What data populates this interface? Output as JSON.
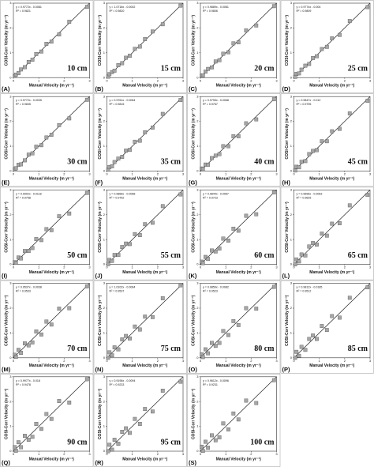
{
  "chart_data": [
    {
      "type": "scatter",
      "panel": "(A)",
      "label": "10 cm",
      "equation": "y = 0.9772x - 0.0081",
      "r2": "R² = 0.9821",
      "xlabel": "Manual Velocity (m yr⁻¹)",
      "ylabel": "COSI-Corr Velocity (m yr⁻¹)",
      "color": "#a6a6a6",
      "xlim": [
        0,
        3
      ],
      "ylim": [
        0,
        3
      ],
      "xticks": [
        0,
        1,
        2,
        3
      ],
      "yticks": [
        0,
        1,
        2,
        3
      ],
      "x": [
        0.05,
        0.1,
        0.2,
        0.3,
        0.45,
        0.6,
        0.75,
        0.9,
        1.1,
        1.3,
        1.5,
        1.8,
        2.2,
        2.9
      ],
      "y": [
        0.06,
        0.12,
        0.18,
        0.33,
        0.42,
        0.63,
        0.72,
        0.95,
        1.05,
        1.36,
        1.45,
        1.74,
        2.25,
        2.85
      ]
    },
    {
      "type": "scatter",
      "panel": "(B)",
      "label": "15 cm",
      "equation": "y = 1.0718x - 0.0002",
      "r2": "R² = 0.9820",
      "xlabel": "Manual Velocity (m yr⁻¹)",
      "ylabel": "COSI-Corr Velocity (m yr⁻¹)",
      "color": "#a6a6a6",
      "xlim": [
        0,
        3
      ],
      "ylim": [
        0,
        3
      ],
      "xticks": [
        0,
        1,
        2,
        3
      ],
      "yticks": [
        0,
        1,
        2,
        3
      ],
      "x": [
        0.05,
        0.1,
        0.2,
        0.3,
        0.45,
        0.6,
        0.75,
        0.9,
        1.1,
        1.3,
        1.5,
        1.8,
        2.2,
        2.9
      ],
      "y": [
        0.04,
        0.14,
        0.22,
        0.28,
        0.5,
        0.58,
        0.8,
        0.88,
        1.16,
        1.25,
        1.55,
        1.86,
        2.15,
        2.9
      ]
    },
    {
      "type": "scatter",
      "panel": "(C)",
      "label": "20 cm",
      "equation": "y = 0.9889x - 0.0081",
      "r2": "R² = 0.9806",
      "xlabel": "Manual Velocity (m yr⁻¹)",
      "ylabel": "COSI-Corr Velocity (m yr⁻¹)",
      "color": "#a6a6a6",
      "xlim": [
        0,
        3
      ],
      "ylim": [
        0,
        3
      ],
      "xticks": [
        0,
        1,
        2,
        3
      ],
      "yticks": [
        0,
        1,
        2,
        3
      ],
      "x": [
        0.05,
        0.1,
        0.2,
        0.3,
        0.45,
        0.6,
        0.75,
        0.9,
        1.1,
        1.3,
        1.5,
        1.8,
        2.2,
        2.9
      ],
      "y": [
        0.08,
        0.09,
        0.24,
        0.35,
        0.41,
        0.65,
        0.7,
        0.96,
        1.02,
        1.38,
        1.42,
        1.9,
        2.1,
        2.88
      ]
    },
    {
      "type": "scatter",
      "panel": "(D)",
      "label": "25 cm",
      "equation": "y = 0.9774x - 0.004",
      "r2": "R² = 0.9809",
      "xlabel": "Manual Velocity (m yr⁻¹)",
      "ylabel": "COSI-Corr Velocity (m yr⁻¹)",
      "color": "#a6a6a6",
      "xlim": [
        0,
        3
      ],
      "ylim": [
        0,
        3
      ],
      "xticks": [
        0,
        1,
        2,
        3
      ],
      "yticks": [
        0,
        1,
        2,
        3
      ],
      "x": [
        0.05,
        0.1,
        0.2,
        0.3,
        0.45,
        0.6,
        0.75,
        0.9,
        1.1,
        1.3,
        1.5,
        1.8,
        2.2,
        2.9
      ],
      "y": [
        0.03,
        0.15,
        0.17,
        0.32,
        0.48,
        0.55,
        0.79,
        0.86,
        1.15,
        1.24,
        1.58,
        1.72,
        2.28,
        2.84
      ]
    },
    {
      "type": "scatter",
      "panel": "(E)",
      "label": "30 cm",
      "equation": "y = 0.9772x - 0.0035",
      "r2": "R² = 0.9835",
      "xlabel": "Manual Velocity (m yr⁻¹)",
      "ylabel": "COSI-Corr Velocity (m yr⁻¹)",
      "color": "#a6a6a6",
      "xlim": [
        0,
        3
      ],
      "ylim": [
        0,
        3
      ],
      "xticks": [
        0,
        1,
        2,
        3
      ],
      "yticks": [
        0,
        1,
        2,
        3
      ],
      "x": [
        0.05,
        0.1,
        0.2,
        0.3,
        0.45,
        0.6,
        0.75,
        0.9,
        1.1,
        1.3,
        1.5,
        1.8,
        2.2,
        2.9
      ],
      "y": [
        0.07,
        0.11,
        0.25,
        0.27,
        0.43,
        0.66,
        0.71,
        0.98,
        1.04,
        1.35,
        1.46,
        1.85,
        2.12,
        2.87
      ]
    },
    {
      "type": "scatter",
      "panel": "(F)",
      "label": "35 cm",
      "equation": "y = 0.9761x - 0.0064",
      "r2": "R² = 0.9815",
      "xlabel": "Manual Velocity (m yr⁻¹)",
      "ylabel": "COSI-Corr Velocity (m yr⁻¹)",
      "color": "#a6a6a6",
      "xlim": [
        0,
        3
      ],
      "ylim": [
        0,
        3
      ],
      "xticks": [
        0,
        1,
        2,
        3
      ],
      "yticks": [
        0,
        1,
        2,
        3
      ],
      "x": [
        0.05,
        0.1,
        0.2,
        0.3,
        0.45,
        0.6,
        0.75,
        0.9,
        1.1,
        1.3,
        1.5,
        1.8,
        2.2,
        2.9
      ],
      "y": [
        0.05,
        0.16,
        0.19,
        0.36,
        0.5,
        0.57,
        0.82,
        0.85,
        1.18,
        1.22,
        1.56,
        1.75,
        2.3,
        2.86
      ]
    },
    {
      "type": "scatter",
      "panel": "(G)",
      "label": "40 cm",
      "equation": "y = 0.9795x - 0.0068",
      "r2": "R² = 0.9767",
      "xlabel": "Manual Velocity (m yr⁻¹)",
      "ylabel": "COSI-Corr Velocity (m yr⁻¹)",
      "color": "#a6a6a6",
      "xlim": [
        0,
        3
      ],
      "ylim": [
        0,
        3
      ],
      "xticks": [
        0,
        1,
        2,
        3
      ],
      "yticks": [
        0,
        1,
        2,
        3
      ],
      "x": [
        0.05,
        0.1,
        0.2,
        0.3,
        0.45,
        0.6,
        0.75,
        0.9,
        1.1,
        1.3,
        1.5,
        1.8,
        2.2,
        2.9
      ],
      "y": [
        0.1,
        0.08,
        0.26,
        0.25,
        0.52,
        0.62,
        0.68,
        1.0,
        1.0,
        1.4,
        1.4,
        1.92,
        2.08,
        2.89
      ]
    },
    {
      "type": "scatter",
      "panel": "(H)",
      "label": "45 cm",
      "equation": "y = 0.9847x - 0.012",
      "r2": "R² = 0.9795",
      "xlabel": "Manual Velocity (m yr⁻¹)",
      "ylabel": "COSI-Corr Velocity (m yr⁻¹)",
      "color": "#a6a6a6",
      "xlim": [
        0,
        3
      ],
      "ylim": [
        0,
        3
      ],
      "xticks": [
        0,
        1,
        2,
        3
      ],
      "yticks": [
        0,
        1,
        2,
        3
      ],
      "x": [
        0.05,
        0.1,
        0.2,
        0.3,
        0.45,
        0.6,
        0.75,
        0.9,
        1.1,
        1.3,
        1.5,
        1.8,
        2.2,
        2.9
      ],
      "y": [
        0.02,
        0.17,
        0.15,
        0.37,
        0.4,
        0.68,
        0.81,
        0.84,
        1.2,
        1.2,
        1.6,
        1.7,
        2.32,
        2.83
      ]
    },
    {
      "type": "scatter",
      "panel": "(I)",
      "label": "50 cm",
      "equation": "y = 0.9902x - 0.0118",
      "r2": "R² = 0.9758",
      "xlabel": "Manual Velocity (m yr⁻¹)",
      "ylabel": "COSI-Corr Velocity (m yr⁻¹)",
      "color": "#a6a6a6",
      "xlim": [
        0,
        3
      ],
      "ylim": [
        0,
        3
      ],
      "xticks": [
        0,
        1,
        2,
        3
      ],
      "yticks": [
        0,
        1,
        2,
        3
      ],
      "x": [
        0.05,
        0.1,
        0.2,
        0.3,
        0.45,
        0.6,
        0.75,
        0.9,
        1.1,
        1.3,
        1.5,
        1.8,
        2.2,
        2.9
      ],
      "y": [
        0.09,
        0.06,
        0.28,
        0.24,
        0.54,
        0.54,
        0.66,
        1.02,
        0.98,
        1.42,
        1.38,
        1.94,
        2.05,
        2.88
      ]
    },
    {
      "type": "scatter",
      "panel": "(J)",
      "label": "55 cm",
      "equation": "y = 0.9866x - 0.0068",
      "r2": "R² = 0.9752",
      "xlabel": "Manual Velocity (m yr⁻¹)",
      "ylabel": "COSI-Corr Velocity (m yr⁻¹)",
      "color": "#a6a6a6",
      "xlim": [
        0,
        3
      ],
      "ylim": [
        0,
        3
      ],
      "xticks": [
        0,
        1,
        2,
        3
      ],
      "yticks": [
        0,
        1,
        2,
        3
      ],
      "x": [
        0.05,
        0.1,
        0.2,
        0.3,
        0.45,
        0.6,
        0.75,
        0.9,
        1.1,
        1.3,
        1.5,
        1.8,
        2.2,
        2.9
      ],
      "y": [
        0.01,
        0.18,
        0.14,
        0.38,
        0.38,
        0.7,
        0.84,
        0.82,
        1.22,
        1.18,
        1.62,
        1.68,
        2.35,
        2.82
      ]
    },
    {
      "type": "scatter",
      "panel": "(K)",
      "label": "60 cm",
      "equation": "y = 0.9844x - 0.0067",
      "r2": "R² = 0.9723",
      "xlabel": "Manual Velocity (m yr⁻¹)",
      "ylabel": "COSI-Corr Velocity (m yr⁻¹)",
      "color": "#a6a6a6",
      "xlim": [
        0,
        3
      ],
      "ylim": [
        0,
        3
      ],
      "xticks": [
        0,
        1,
        2,
        3
      ],
      "yticks": [
        0,
        1,
        2,
        3
      ],
      "x": [
        0.05,
        0.1,
        0.2,
        0.3,
        0.45,
        0.6,
        0.75,
        0.9,
        1.1,
        1.3,
        1.5,
        1.8,
        2.2,
        2.9
      ],
      "y": [
        0.11,
        0.05,
        0.3,
        0.22,
        0.56,
        0.52,
        0.64,
        1.04,
        0.96,
        1.44,
        1.36,
        1.96,
        2.02,
        2.9
      ]
    },
    {
      "type": "scatter",
      "panel": "(L)",
      "label": "65 cm",
      "equation": "y = 0.9696x - 0.0063",
      "r2": "R² = 0.9625",
      "xlabel": "Manual Velocity (m yr⁻¹)",
      "ylabel": "COSI-Corr Velocity (m yr⁻¹)",
      "color": "#a6a6a6",
      "xlim": [
        0,
        3
      ],
      "ylim": [
        0,
        3
      ],
      "xticks": [
        0,
        1,
        2,
        3
      ],
      "yticks": [
        0,
        1,
        2,
        3
      ],
      "x": [
        0.05,
        0.1,
        0.2,
        0.3,
        0.45,
        0.6,
        0.75,
        0.9,
        1.1,
        1.3,
        1.5,
        1.8,
        2.2,
        2.9
      ],
      "y": [
        0.0,
        0.2,
        0.12,
        0.4,
        0.36,
        0.72,
        0.86,
        0.8,
        1.24,
        1.16,
        1.64,
        1.66,
        2.38,
        2.8
      ]
    },
    {
      "type": "scatter",
      "panel": "(M)",
      "label": "70 cm",
      "equation": "y = 0.9537x - 0.0038",
      "r2": "R² = 0.9533",
      "xlabel": "Manual Velocity (m yr⁻¹)",
      "ylabel": "COSI-Corr Velocity (m yr⁻¹)",
      "color": "#a6a6a6",
      "xlim": [
        0,
        3
      ],
      "ylim": [
        0,
        3
      ],
      "xticks": [
        0,
        1,
        2,
        3
      ],
      "yticks": [
        0,
        1,
        2,
        3
      ],
      "x": [
        0.05,
        0.1,
        0.2,
        0.3,
        0.45,
        0.6,
        0.75,
        0.9,
        1.1,
        1.3,
        1.5,
        1.8,
        2.2,
        2.9
      ],
      "y": [
        0.12,
        0.04,
        0.32,
        0.2,
        0.58,
        0.5,
        0.62,
        1.06,
        0.94,
        1.46,
        1.34,
        1.98,
        2.0,
        2.88
      ]
    },
    {
      "type": "scatter",
      "panel": "(N)",
      "label": "75 cm",
      "equation": "y = 1.0102x - 0.0064",
      "r2": "R² = 0.9537",
      "xlabel": "Manual Velocity (m yr⁻¹)",
      "ylabel": "COSI-Corr Velocity (m yr⁻¹)",
      "color": "#a6a6a6",
      "xlim": [
        0,
        3
      ],
      "ylim": [
        0,
        3
      ],
      "xticks": [
        0,
        1,
        2,
        3
      ],
      "yticks": [
        0,
        1,
        2,
        3
      ],
      "x": [
        0.05,
        0.1,
        0.2,
        0.3,
        0.45,
        0.6,
        0.75,
        0.9,
        1.1,
        1.3,
        1.5,
        1.8,
        2.2,
        2.9
      ],
      "y": [
        0.0,
        0.22,
        0.1,
        0.42,
        0.34,
        0.74,
        0.88,
        0.78,
        1.26,
        1.14,
        1.66,
        1.64,
        2.4,
        2.92
      ]
    },
    {
      "type": "scatter",
      "panel": "(O)",
      "label": "80 cm",
      "equation": "y = 0.9859x - 0.0082",
      "r2": "R² = 0.9523",
      "xlabel": "Manual Velocity (m yr⁻¹)",
      "ylabel": "COSI-Corr Velocity (m yr⁻¹)",
      "color": "#a6a6a6",
      "xlim": [
        0,
        3
      ],
      "ylim": [
        0,
        3
      ],
      "xticks": [
        0,
        1,
        2,
        3
      ],
      "yticks": [
        0,
        1,
        2,
        3
      ],
      "x": [
        0.05,
        0.1,
        0.2,
        0.3,
        0.45,
        0.6,
        0.75,
        0.9,
        1.1,
        1.3,
        1.5,
        1.8,
        2.2,
        2.9
      ],
      "y": [
        0.14,
        0.03,
        0.34,
        0.18,
        0.6,
        0.48,
        0.6,
        1.08,
        0.92,
        1.48,
        1.32,
        2.0,
        1.98,
        2.86
      ]
    },
    {
      "type": "scatter",
      "panel": "(P)",
      "label": "85 cm",
      "equation": "y = 0.9812x - 0.0185",
      "r2": "R² = 0.9512",
      "xlabel": "Manual Velocity (m yr⁻¹)",
      "ylabel": "COSI-Corr Velocity (m yr⁻¹)",
      "color": "#a6a6a6",
      "xlim": [
        0,
        3
      ],
      "ylim": [
        0,
        3
      ],
      "xticks": [
        0,
        1,
        2,
        3
      ],
      "yticks": [
        0,
        1,
        2,
        3
      ],
      "x": [
        0.05,
        0.1,
        0.2,
        0.3,
        0.45,
        0.6,
        0.75,
        0.9,
        1.1,
        1.3,
        1.5,
        1.8,
        2.2,
        2.9
      ],
      "y": [
        0.0,
        0.24,
        0.08,
        0.44,
        0.32,
        0.76,
        0.9,
        0.76,
        1.28,
        1.12,
        1.68,
        1.62,
        2.42,
        2.84
      ]
    },
    {
      "type": "scatter",
      "panel": "(Q)",
      "label": "90 cm",
      "equation": "y = 0.9977x - 0.018",
      "r2": "R² = 0.9478",
      "xlabel": "Manual Velocity (m yr⁻¹)",
      "ylabel": "COSI-Corr Velocity (m yr⁻¹)",
      "color": "#a6a6a6",
      "xlim": [
        0,
        3
      ],
      "ylim": [
        0,
        3
      ],
      "xticks": [
        0,
        1,
        2,
        3
      ],
      "yticks": [
        0,
        1,
        2,
        3
      ],
      "x": [
        0.05,
        0.1,
        0.2,
        0.3,
        0.45,
        0.6,
        0.75,
        0.9,
        1.1,
        1.3,
        1.5,
        1.8,
        2.2,
        2.9
      ],
      "y": [
        0.16,
        0.02,
        0.36,
        0.16,
        0.62,
        0.46,
        0.58,
        1.1,
        0.9,
        1.5,
        1.3,
        2.02,
        1.96,
        2.9
      ]
    },
    {
      "type": "scatter",
      "panel": "(R)",
      "label": "95 cm",
      "equation": "y = 0.9198x - 0.0094",
      "r2": "R² = 0.9233",
      "xlabel": "Manual Velocity (m yr⁻¹)",
      "ylabel": "COSI-Corr Velocity (m yr⁻¹)",
      "color": "#a6a6a6",
      "xlim": [
        0,
        3
      ],
      "ylim": [
        0,
        3
      ],
      "xticks": [
        0,
        1,
        2,
        3
      ],
      "yticks": [
        0,
        1,
        2,
        3
      ],
      "x": [
        0.05,
        0.1,
        0.2,
        0.3,
        0.45,
        0.6,
        0.75,
        0.9,
        1.1,
        1.3,
        1.5,
        1.8,
        2.2,
        2.9
      ],
      "y": [
        0.0,
        0.26,
        0.06,
        0.46,
        0.3,
        0.78,
        0.92,
        0.74,
        1.3,
        1.1,
        1.7,
        1.6,
        2.44,
        2.8
      ]
    },
    {
      "type": "scatter",
      "panel": "(S)",
      "label": "100 cm",
      "equation": "y = 0.9612x - 0.0096",
      "r2": "R² = 0.9231",
      "xlabel": "Manual Velocity (m yr⁻¹)",
      "ylabel": "COSI-Corr Velocity (m yr⁻¹)",
      "color": "#a6a6a6",
      "xlim": [
        0,
        3
      ],
      "ylim": [
        0,
        3
      ],
      "xticks": [
        0,
        1,
        2,
        3
      ],
      "yticks": [
        0,
        1,
        2,
        3
      ],
      "x": [
        0.05,
        0.1,
        0.2,
        0.3,
        0.45,
        0.6,
        0.75,
        0.9,
        1.1,
        1.3,
        1.5,
        1.8,
        2.2,
        2.9
      ],
      "y": [
        0.18,
        0.01,
        0.38,
        0.14,
        0.64,
        0.44,
        0.56,
        1.12,
        0.88,
        1.52,
        1.28,
        2.04,
        1.94,
        2.86
      ]
    }
  ]
}
